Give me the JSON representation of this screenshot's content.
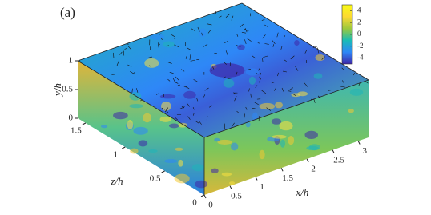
{
  "panel_label": "(a)",
  "colorbar": {
    "lim": [
      -5,
      5
    ],
    "ticks": [
      -4,
      -2,
      0,
      2,
      4
    ],
    "colors": [
      "#3e26a8",
      "#2e87f7",
      "#19bcb5",
      "#9dc93b",
      "#fcd932",
      "#f9fb15"
    ]
  },
  "axes": {
    "x": {
      "label": "x/h",
      "lim": [
        0,
        3.2
      ],
      "ticks": [
        0,
        0.5,
        1,
        1.5,
        2,
        2.5,
        3
      ]
    },
    "y": {
      "label": "y/h",
      "lim": [
        0,
        1
      ],
      "ticks": [
        0,
        0.5,
        1
      ]
    },
    "z": {
      "label": "z/h",
      "lim": [
        0,
        1.6
      ],
      "ticks": [
        0,
        0.5,
        1,
        1.5
      ]
    }
  }
}
